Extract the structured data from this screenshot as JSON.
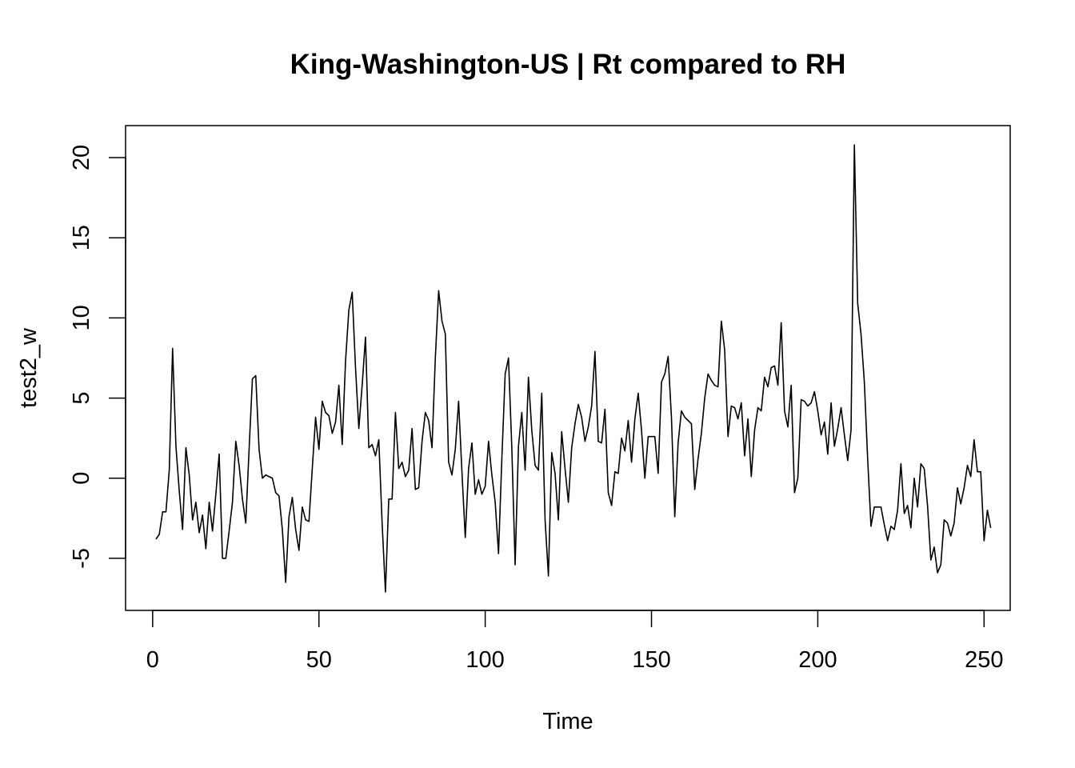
{
  "chart_data": {
    "type": "line",
    "title": "King-Washington-US | Rt compared to RH",
    "xlabel": "Time",
    "ylabel": "test2_w",
    "xlim": [
      1,
      248
    ],
    "ylim": [
      -7.1,
      20.8
    ],
    "x_ticks": [
      0,
      50,
      100,
      150,
      200,
      250
    ],
    "x_tick_labels": [
      "0",
      "50",
      "100",
      "150",
      "200",
      "250"
    ],
    "y_ticks": [
      -5,
      0,
      5,
      10,
      15,
      20
    ],
    "y_tick_labels": [
      "-5",
      "0",
      "5",
      "10",
      "15",
      "20"
    ],
    "grid": false,
    "legend": "none",
    "line_color": "#000000",
    "series": [
      {
        "x_start": 1,
        "x_step": 1,
        "values": [
          -3.8,
          -3.5,
          -2.1,
          -2.1,
          0.5,
          8.1,
          2.0,
          -0.8,
          -3.2,
          1.9,
          0.2,
          -2.6,
          -1.5,
          -3.4,
          -2.3,
          -4.4,
          -1.5,
          -3.3,
          -1.0,
          1.5,
          -5.0,
          -5.0,
          -3.3,
          -1.5,
          2.3,
          0.8,
          -1.3,
          -2.8,
          1.8,
          6.2,
          6.4,
          1.8,
          0.0,
          0.2,
          0.1,
          0.0,
          -0.9,
          -1.1,
          -3.2,
          -6.5,
          -2.4,
          -1.2,
          -3.2,
          -4.5,
          -1.8,
          -2.6,
          -2.7,
          0.6,
          3.8,
          1.8,
          4.8,
          4.1,
          3.9,
          2.8,
          3.5,
          5.8,
          2.1,
          7.3,
          10.5,
          11.6,
          6.9,
          3.1,
          5.8,
          8.8,
          1.9,
          2.1,
          1.4,
          2.4,
          -2.8,
          -7.1,
          -1.3,
          -1.3,
          4.1,
          0.6,
          1.0,
          0.1,
          0.5,
          3.1,
          -0.7,
          -0.6,
          2.3,
          4.1,
          3.6,
          1.9,
          7.5,
          11.7,
          9.8,
          9.0,
          1.0,
          0.2,
          1.8,
          4.8,
          0.4,
          -3.7,
          0.6,
          2.2,
          -1.0,
          -0.1,
          -1.0,
          -0.5,
          2.3,
          0.2,
          -1.5,
          -4.7,
          1.2,
          6.5,
          7.5,
          1.9,
          -5.4,
          2.0,
          4.1,
          0.5,
          6.3,
          3.0,
          0.8,
          0.5,
          5.3,
          -2.6,
          -6.1,
          1.6,
          0.3,
          -2.6,
          2.9,
          0.6,
          -1.5,
          1.9,
          3.4,
          4.6,
          3.8,
          2.3,
          3.2,
          4.5,
          7.9,
          2.3,
          2.2,
          4.3,
          -0.9,
          -1.7,
          0.4,
          0.3,
          2.5,
          1.7,
          3.6,
          1.0,
          3.7,
          5.3,
          3.0,
          0.0,
          2.6,
          2.6,
          2.6,
          0.3,
          6.0,
          6.5,
          7.6,
          3.8,
          -2.4,
          2.2,
          4.2,
          3.8,
          3.6,
          3.4,
          -0.7,
          1.2,
          2.8,
          5.0,
          6.5,
          6.1,
          5.8,
          5.7,
          9.8,
          8.0,
          2.6,
          4.5,
          4.4,
          3.7,
          4.7,
          1.4,
          3.7,
          0.1,
          3.0,
          4.4,
          4.2,
          6.3,
          5.7,
          6.9,
          7.0,
          5.8,
          9.7,
          4.2,
          3.2,
          5.8,
          -0.9,
          0.0,
          4.9,
          4.8,
          4.5,
          4.7,
          5.4,
          4.2,
          2.7,
          3.5,
          1.5,
          4.7,
          2.0,
          3.1,
          4.4,
          2.7,
          1.1,
          3.0,
          20.8,
          10.9,
          9.0,
          6.0,
          1.2,
          -3.0,
          -1.8,
          -1.8,
          -1.8,
          -2.9,
          -3.9,
          -3.0,
          -3.2,
          -2.0,
          0.9,
          -2.2,
          -1.7,
          -3.1,
          0.0,
          -1.8,
          0.9,
          0.6,
          -1.7,
          -5.1,
          -4.3,
          -5.9,
          -5.4,
          -2.6,
          -2.8,
          -3.6,
          -2.8,
          -0.6,
          -1.6,
          -0.6,
          0.8,
          0.1,
          2.4,
          0.4,
          0.4,
          -3.9,
          -2.0,
          -3.1
        ]
      }
    ]
  }
}
